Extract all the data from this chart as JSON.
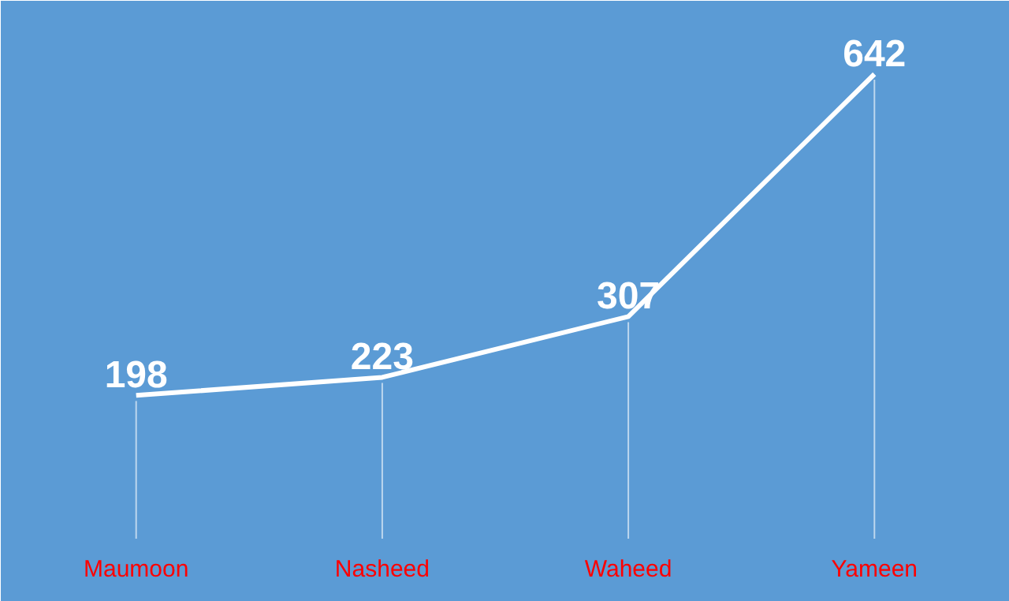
{
  "chart_data": {
    "type": "line",
    "categories": [
      "Maumoon",
      "Nasheed",
      "Waheed",
      "Yameen"
    ],
    "series": [
      {
        "color": "#ffffff",
        "values": [
          198,
          223,
          307,
          642
        ]
      }
    ],
    "data_labels": true,
    "line_style": "solid"
  }
}
